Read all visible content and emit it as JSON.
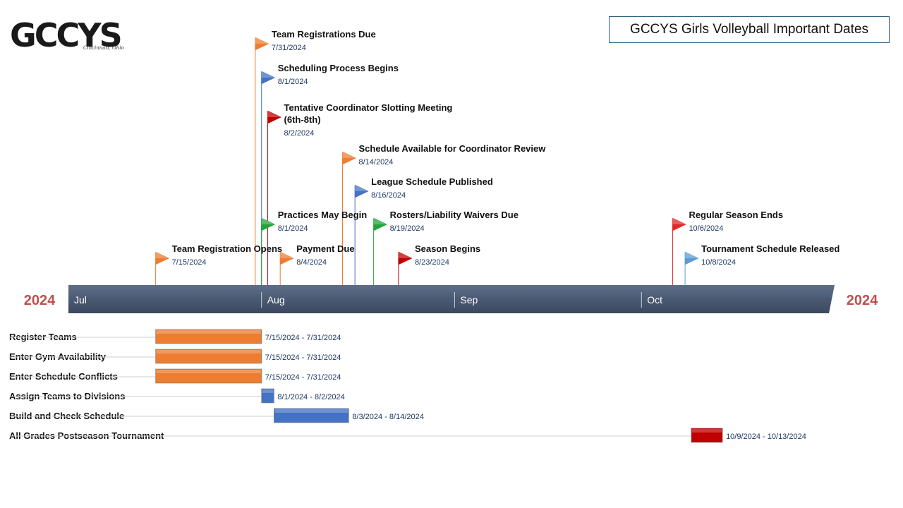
{
  "title": "GCCYS Girls Volleyball Important Dates",
  "logo": {
    "text": "GCCYS",
    "subtitle": "Cincinnati, Ohio"
  },
  "year_left": "2024",
  "year_right": "2024",
  "colors": {
    "orange": "#ed7d31",
    "blue": "#4472c4",
    "red": "#c00000",
    "green": "#22a33a",
    "light_blue": "#5b9bd5",
    "bright_red": "#e0282a",
    "bar": "#4b5a73",
    "year": "#c0504d",
    "date_text": "#1f3864"
  },
  "chart_data": {
    "type": "timeline",
    "axis": {
      "start": "2024-07-01",
      "end": "2024-10-31",
      "months": [
        {
          "label": "Jul",
          "date": "2024-07-01"
        },
        {
          "label": "Aug",
          "date": "2024-08-01"
        },
        {
          "label": "Sep",
          "date": "2024-09-01"
        },
        {
          "label": "Oct",
          "date": "2024-10-01"
        }
      ]
    },
    "milestones": [
      {
        "label": "Team Registrations Due",
        "date_label": "7/31/2024",
        "date": "2024-07-31",
        "color": "orange",
        "lane": 0
      },
      {
        "label": "Scheduling Process Begins",
        "date_label": "8/1/2024",
        "date": "2024-08-01",
        "color": "blue",
        "lane": 1
      },
      {
        "label": "Tentative Coordinator Slotting Meeting (6th-8th)",
        "date_label": "8/2/2024",
        "date": "2024-08-02",
        "color": "red",
        "lane": 2
      },
      {
        "label": "Schedule Available for Coordinator Review",
        "date_label": "8/14/2024",
        "date": "2024-08-14",
        "color": "orange",
        "lane": 3
      },
      {
        "label": "League Schedule Published",
        "date_label": "8/16/2024",
        "date": "2024-08-16",
        "color": "blue",
        "lane": 4
      },
      {
        "label": "Practices May Begin",
        "date_label": "8/1/2024",
        "date": "2024-08-01",
        "color": "green",
        "lane": 5
      },
      {
        "label": "Rosters/Liability Waivers Due",
        "date_label": "8/19/2024",
        "date": "2024-08-19",
        "color": "green",
        "lane": 5
      },
      {
        "label": "Regular Season Ends",
        "date_label": "10/6/2024",
        "date": "2024-10-06",
        "color": "bright_red",
        "lane": 5
      },
      {
        "label": "Team Registration Opens",
        "date_label": "7/15/2024",
        "date": "2024-07-15",
        "color": "orange",
        "lane": 6
      },
      {
        "label": "Payment Due",
        "date_label": "8/4/2024",
        "date": "2024-08-04",
        "color": "orange",
        "lane": 6
      },
      {
        "label": "Season Begins",
        "date_label": "8/23/2024",
        "date": "2024-08-23",
        "color": "red",
        "lane": 6
      },
      {
        "label": "Tournament Schedule Released",
        "date_label": "10/8/2024",
        "date": "2024-10-08",
        "color": "light_blue",
        "lane": 6
      }
    ],
    "tasks": [
      {
        "label": "Register Teams",
        "start": "2024-07-15",
        "end": "2024-07-31",
        "range_label": "7/15/2024 - 7/31/2024",
        "color": "orange"
      },
      {
        "label": "Enter Gym Availability",
        "start": "2024-07-15",
        "end": "2024-07-31",
        "range_label": "7/15/2024 - 7/31/2024",
        "color": "orange"
      },
      {
        "label": "Enter Schedule Conflicts",
        "start": "2024-07-15",
        "end": "2024-07-31",
        "range_label": "7/15/2024 - 7/31/2024",
        "color": "orange"
      },
      {
        "label": "Assign Teams to Divisions",
        "start": "2024-08-01",
        "end": "2024-08-02",
        "range_label": "8/1/2024 - 8/2/2024",
        "color": "blue"
      },
      {
        "label": "Build and Check Schedule",
        "start": "2024-08-03",
        "end": "2024-08-14",
        "range_label": "8/3/2024 - 8/14/2024",
        "color": "blue"
      },
      {
        "label": "All Grades Postseason Tournament",
        "start": "2024-10-09",
        "end": "2024-10-13",
        "range_label": "10/9/2024 - 10/13/2024",
        "color": "red"
      }
    ]
  }
}
